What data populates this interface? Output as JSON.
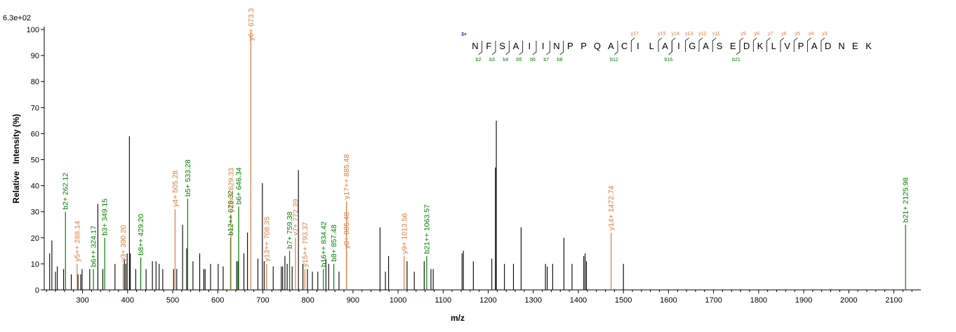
{
  "colors": {
    "b_ion": "#008000",
    "y_ion": "#e07a3c",
    "charge": "#1a1a9a",
    "noise": "#000000"
  },
  "chart_data": {
    "type": "bar",
    "title": "",
    "max_intensity_label": "6.3e+02",
    "xlabel": "m/z",
    "ylabel": "Relative   Intensity (%)",
    "xlim": [
      215,
      2160
    ],
    "ylim": [
      0,
      100
    ],
    "x_ticks": [
      300,
      400,
      500,
      600,
      700,
      800,
      900,
      1000,
      1100,
      1200,
      1300,
      1400,
      1500,
      1600,
      1700,
      1800,
      1900,
      2000,
      2100
    ],
    "y_ticks": [
      0,
      10,
      20,
      30,
      40,
      50,
      60,
      70,
      80,
      90,
      100
    ],
    "annotated_peaks": [
      {
        "mz": 262.12,
        "intensity": 30,
        "label": "b2+ 262.12",
        "ion": "b"
      },
      {
        "mz": 288.14,
        "intensity": 10,
        "label": "y5++ 288.14",
        "ion": "y"
      },
      {
        "mz": 324.17,
        "intensity": 8,
        "label": "b6++ 324.17",
        "ion": "b"
      },
      {
        "mz": 349.15,
        "intensity": 20,
        "label": "b3+ 349.15",
        "ion": "b"
      },
      {
        "mz": 390.2,
        "intensity": 10,
        "label": "y3+ 390.20",
        "ion": "y"
      },
      {
        "mz": 429.2,
        "intensity": 12.5,
        "label": "b8++ 429.20",
        "ion": "b"
      },
      {
        "mz": 505.28,
        "intensity": 31,
        "label": "y4+ 505.28",
        "ion": "y"
      },
      {
        "mz": 533.28,
        "intensity": 35,
        "label": "b5+ 533.28",
        "ion": "b"
      },
      {
        "mz": 628.32,
        "intensity": 20,
        "label": "b12++ 628.32",
        "ion": "b"
      },
      {
        "mz": 629.33,
        "intensity": 29,
        "label": "y11++ 629.33",
        "ion": "y"
      },
      {
        "mz": 646.34,
        "intensity": 32,
        "label": "b6+ 646.34",
        "ion": "b"
      },
      {
        "mz": 673.3,
        "intensity": 99,
        "label": "y6+ 673.3",
        "ion": "y"
      },
      {
        "mz": 708.35,
        "intensity": 10,
        "label": "y13++ 708.35",
        "ion": "y"
      },
      {
        "mz": 759.38,
        "intensity": 15,
        "label": "b7+ 759.38",
        "ion": "b"
      },
      {
        "mz": 772.39,
        "intensity": 20,
        "label": "y7+ 772.39",
        "ion": "y"
      },
      {
        "mz": 793.37,
        "intensity": 8,
        "label": "y15++ 793.37",
        "ion": "y"
      },
      {
        "mz": 834.42,
        "intensity": 8,
        "label": "b16++ 834.42",
        "ion": "b"
      },
      {
        "mz": 857.48,
        "intensity": 10,
        "label": "b8+ 857.48",
        "ion": "b"
      },
      {
        "mz": 885.48,
        "intensity": 15,
        "label": "y8+ 885.48",
        "ion": "y"
      },
      {
        "mz": 885.48,
        "intensity": 34,
        "label": "y17++ 885.48",
        "ion": "y"
      },
      {
        "mz": 1013.56,
        "intensity": 13,
        "label": "y9+ 1013.56",
        "ion": "y"
      },
      {
        "mz": 1063.57,
        "intensity": 13,
        "label": "b21++ 1063.57",
        "ion": "b"
      },
      {
        "mz": 1472.74,
        "intensity": 22,
        "label": "y14+ 1472.74",
        "ion": "y"
      },
      {
        "mz": 2125.98,
        "intensity": 25,
        "label": "b21+ 2125.98",
        "ion": "b"
      }
    ],
    "other_peaks": [
      [
        227,
        14
      ],
      [
        232,
        19
      ],
      [
        240,
        7
      ],
      [
        244,
        9
      ],
      [
        258,
        8
      ],
      [
        275,
        6
      ],
      [
        290,
        6
      ],
      [
        296,
        6
      ],
      [
        299,
        8
      ],
      [
        316,
        8
      ],
      [
        334,
        33
      ],
      [
        345,
        8
      ],
      [
        372,
        10
      ],
      [
        393,
        12
      ],
      [
        396,
        10
      ],
      [
        399,
        14
      ],
      [
        404,
        59
      ],
      [
        406,
        14
      ],
      [
        418,
        8
      ],
      [
        441,
        8
      ],
      [
        455,
        11
      ],
      [
        463,
        11
      ],
      [
        470,
        10
      ],
      [
        478,
        8
      ],
      [
        502,
        8
      ],
      [
        509,
        8
      ],
      [
        522,
        25
      ],
      [
        531,
        16
      ],
      [
        545,
        11
      ],
      [
        560,
        14
      ],
      [
        569,
        8
      ],
      [
        572,
        8
      ],
      [
        584,
        10
      ],
      [
        601,
        10
      ],
      [
        612,
        9
      ],
      [
        642,
        11
      ],
      [
        645,
        11
      ],
      [
        658,
        14
      ],
      [
        666,
        22
      ],
      [
        689,
        12
      ],
      [
        699,
        41
      ],
      [
        703,
        11
      ],
      [
        723,
        9
      ],
      [
        741,
        9
      ],
      [
        744,
        9
      ],
      [
        749,
        13
      ],
      [
        754,
        10
      ],
      [
        765,
        9
      ],
      [
        779,
        46
      ],
      [
        789,
        10
      ],
      [
        799,
        8
      ],
      [
        810,
        7
      ],
      [
        822,
        7
      ],
      [
        840,
        12
      ],
      [
        846,
        10
      ],
      [
        869,
        7
      ],
      [
        960,
        24
      ],
      [
        972,
        7
      ],
      [
        979,
        13
      ],
      [
        1020,
        11
      ],
      [
        1036,
        7
      ],
      [
        1058,
        11
      ],
      [
        1073,
        8
      ],
      [
        1078,
        8
      ],
      [
        1142,
        14
      ],
      [
        1145,
        15
      ],
      [
        1167,
        11
      ],
      [
        1208,
        12
      ],
      [
        1216,
        47
      ],
      [
        1218,
        65
      ],
      [
        1236,
        10
      ],
      [
        1256,
        10
      ],
      [
        1273,
        24
      ],
      [
        1327,
        10
      ],
      [
        1331,
        9
      ],
      [
        1343,
        10
      ],
      [
        1368,
        20
      ],
      [
        1386,
        10
      ],
      [
        1412,
        13
      ],
      [
        1415,
        14
      ],
      [
        1418,
        11
      ],
      [
        1500,
        10
      ]
    ]
  },
  "sequence": {
    "charge_label": "3+",
    "residues": [
      "N",
      "F",
      "S",
      "A",
      "I",
      "I",
      "N",
      "P",
      "P",
      "Q",
      "A",
      "C",
      "I",
      "L",
      "A",
      "I",
      "G",
      "A",
      "S",
      "E",
      "D",
      "K",
      "L",
      "V",
      "P",
      "A",
      "D",
      "N",
      "E",
      "K"
    ],
    "b_ions": [
      {
        "after": 1,
        "label": "b2"
      },
      {
        "after": 2,
        "label": "b3"
      },
      {
        "after": 3,
        "label": "b4"
      },
      {
        "after": 4,
        "label": "b5"
      },
      {
        "after": 5,
        "label": "b6"
      },
      {
        "after": 6,
        "label": "b7"
      },
      {
        "after": 7,
        "label": "b8"
      },
      {
        "after": 11,
        "label": "b12"
      },
      {
        "after": 15,
        "label": "b16"
      },
      {
        "after": 20,
        "label": "b21"
      }
    ],
    "y_ions": [
      {
        "after": 12,
        "label": "y17"
      },
      {
        "after": 14,
        "label": "y15"
      },
      {
        "after": 15,
        "label": "y14"
      },
      {
        "after": 16,
        "label": "y13"
      },
      {
        "after": 17,
        "label": "y12"
      },
      {
        "after": 18,
        "label": "y11"
      },
      {
        "after": 20,
        "label": "y9"
      },
      {
        "after": 21,
        "label": "y8"
      },
      {
        "after": 22,
        "label": "y7"
      },
      {
        "after": 23,
        "label": "y6"
      },
      {
        "after": 24,
        "label": "y5"
      },
      {
        "after": 25,
        "label": "y4"
      },
      {
        "after": 26,
        "label": "y3"
      }
    ]
  }
}
